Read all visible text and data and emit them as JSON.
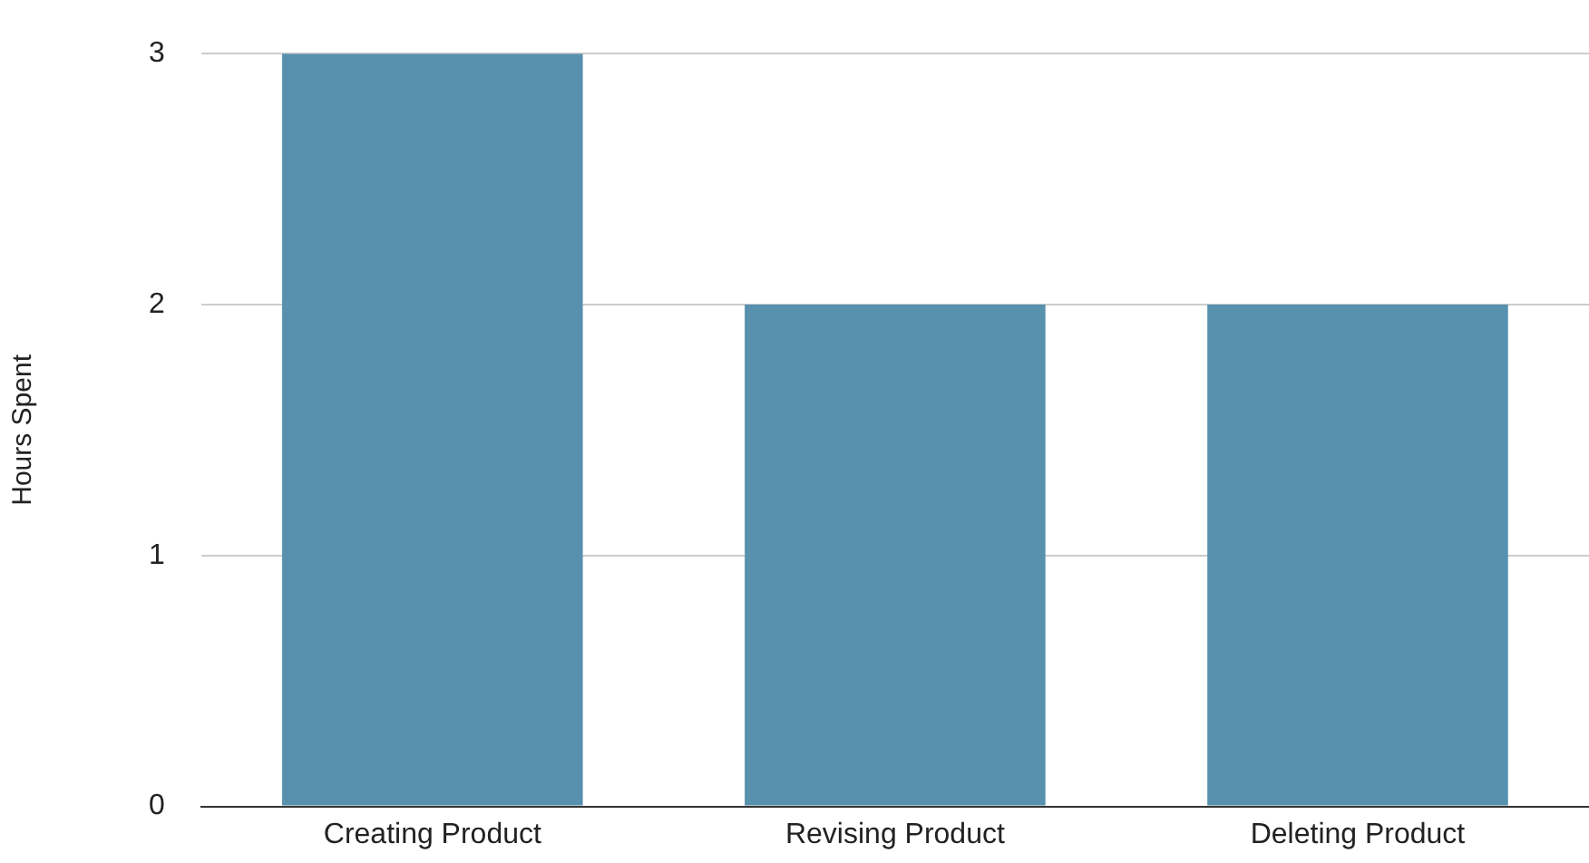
{
  "chart_data": {
    "type": "bar",
    "ylabel": "Hours Spent",
    "categories": [
      "Creating Product",
      "Revising Product",
      "Deleting Product"
    ],
    "values": [
      3,
      2,
      2
    ],
    "color": "#5791ae",
    "ylim": [
      0,
      3
    ],
    "yticks": [
      0,
      1,
      2,
      3
    ],
    "grid": "y"
  }
}
